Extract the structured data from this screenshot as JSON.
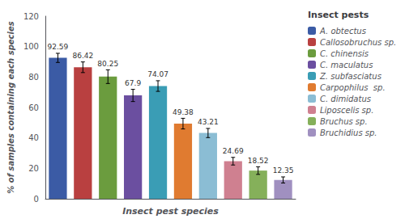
{
  "chart_data": {
    "type": "bar",
    "categories": [
      "A. obtectus",
      "Callosobruchus sp.",
      "C. chinensis",
      "C. maculatus",
      "Z. subfasciatus",
      "Carpophilus  sp.",
      "C. dimidatus",
      "Liposcelis sp.",
      "Bruchus sp.",
      "Bruchidius sp."
    ],
    "values": [
      92.59,
      86.42,
      80.25,
      67.9,
      74.07,
      49.38,
      43.21,
      24.69,
      18.52,
      12.35
    ],
    "errors": [
      3.0,
      3.5,
      4.5,
      4.0,
      3.5,
      3.5,
      3.0,
      2.5,
      2.5,
      2.0
    ],
    "colors": [
      "#3B5BA5",
      "#B94040",
      "#6B9C3E",
      "#6B4FA0",
      "#3A9DB5",
      "#E07B30",
      "#8BBDD4",
      "#CF8090",
      "#85B05A",
      "#A090C0"
    ],
    "xlabel": "Insect pest species",
    "ylabel": "% of samples containing each species",
    "legend_title": "Insect pests",
    "ylim": [
      0,
      120
    ],
    "yticks": [
      0,
      20,
      40,
      60,
      80,
      100,
      120
    ],
    "grid": false,
    "legend": "right",
    "data_labels": true,
    "tick_labels": "y"
  }
}
